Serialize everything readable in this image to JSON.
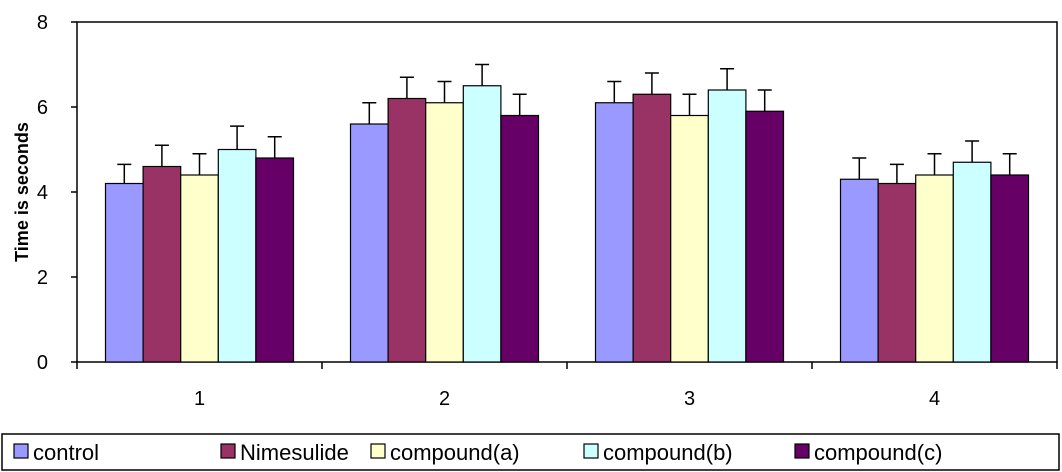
{
  "chart_data": {
    "type": "bar",
    "title": "",
    "xlabel": "",
    "ylabel": "Time is seconds",
    "ylim": [
      0,
      8
    ],
    "yticks": [
      0,
      2,
      4,
      6,
      8
    ],
    "grid": false,
    "legend_position": "bottom",
    "categories": [
      "1",
      "2",
      "3",
      "4"
    ],
    "series": [
      {
        "name": "control",
        "color": "#9999ff",
        "values": [
          4.2,
          5.6,
          6.1,
          4.3
        ],
        "errors": [
          0.45,
          0.5,
          0.5,
          0.5
        ]
      },
      {
        "name": "Nimesulide",
        "color": "#993366",
        "values": [
          4.6,
          6.2,
          6.3,
          4.2
        ],
        "errors": [
          0.5,
          0.5,
          0.5,
          0.45
        ]
      },
      {
        "name": "compound(a)",
        "color": "#ffffcc",
        "values": [
          4.4,
          6.1,
          5.8,
          4.4
        ],
        "errors": [
          0.5,
          0.5,
          0.5,
          0.5
        ]
      },
      {
        "name": "compound(b)",
        "color": "#ccffff",
        "values": [
          5.0,
          6.5,
          6.4,
          4.7
        ],
        "errors": [
          0.55,
          0.5,
          0.5,
          0.5
        ]
      },
      {
        "name": "compound(c)",
        "color": "#660066",
        "values": [
          4.8,
          5.8,
          5.9,
          4.4
        ],
        "errors": [
          0.5,
          0.5,
          0.5,
          0.5
        ]
      }
    ]
  }
}
